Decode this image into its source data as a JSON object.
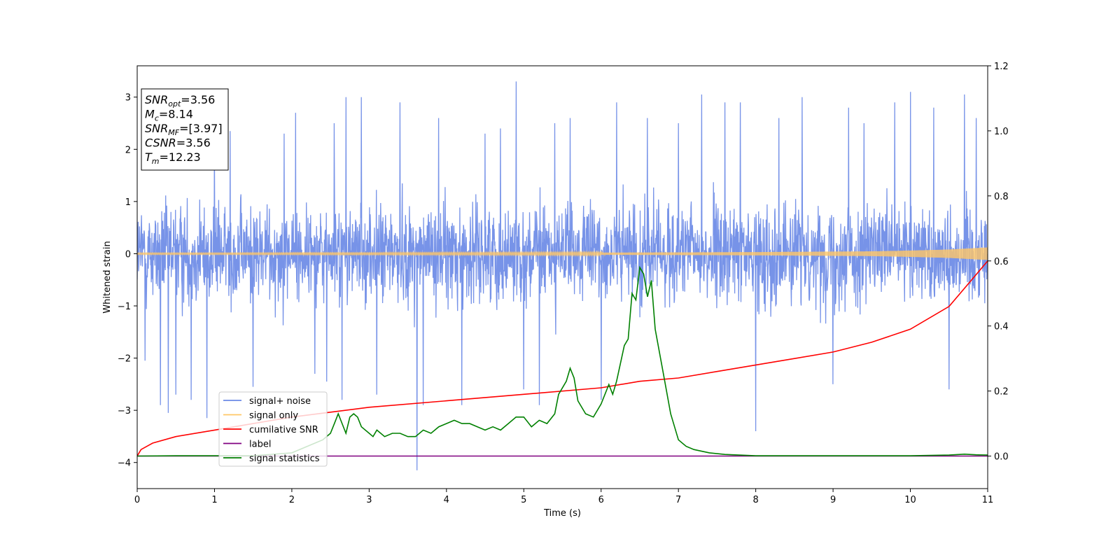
{
  "chart_data": {
    "type": "line",
    "xlabel": "Time (s)",
    "ylabel": "Whitened strain",
    "xlim": [
      0,
      11
    ],
    "ylim": [
      -4.5,
      3.6
    ],
    "ylim_right": [
      -0.1,
      1.2
    ],
    "xticks": [
      "0",
      "1",
      "2",
      "3",
      "4",
      "5",
      "6",
      "7",
      "8",
      "9",
      "10",
      "11"
    ],
    "xtick_values": [
      0,
      1,
      2,
      3,
      4,
      5,
      6,
      7,
      8,
      9,
      10,
      11
    ],
    "yticks": [
      "−4",
      "−3",
      "−2",
      "−1",
      "0",
      "1",
      "2",
      "3"
    ],
    "ytick_values": [
      -4,
      -3,
      -2,
      -1,
      0,
      1,
      2,
      3
    ],
    "yticks_right": [
      "0.0",
      "0.2",
      "0.4",
      "0.6",
      "0.8",
      "1.0",
      "1.2"
    ],
    "ytick_right_values": [
      0,
      0.2,
      0.4,
      0.6,
      0.8,
      1.0,
      1.2
    ],
    "legend_position": "lower-left",
    "legend": [
      {
        "name": "signal+ noise",
        "color": "#6b8ae6"
      },
      {
        "name": "signal only",
        "color": "#ffc766"
      },
      {
        "name": "cumilative SNR",
        "color": "#ff0000"
      },
      {
        "name": "label",
        "color": "#800080"
      },
      {
        "name": "signal statistics",
        "color": "#008000"
      }
    ],
    "annotation": {
      "snr_opt": {
        "name": "SNR",
        "sub": "opt",
        "value": "=3.56"
      },
      "mc": {
        "name": "M",
        "sub": "c",
        "value": "=8.14"
      },
      "snr_mf": {
        "name": "SNR",
        "sub": "MF",
        "value": "=[3.97]"
      },
      "csnr": {
        "name": "CSNR",
        "value": "=3.56"
      },
      "tm": {
        "name": "T",
        "sub": "m",
        "value": "=12.23"
      }
    },
    "series": [
      {
        "name": "signal+ noise",
        "axis": "left",
        "color": "#6b8ae6",
        "description": "noise band approx ±2 with spikes",
        "spikes": [
          [
            0.1,
            -2.05
          ],
          [
            0.3,
            -2.9
          ],
          [
            0.4,
            -3.05
          ],
          [
            0.5,
            -2.7
          ],
          [
            0.7,
            -2.8
          ],
          [
            0.9,
            -3.15
          ],
          [
            1.0,
            2.2
          ],
          [
            1.2,
            2.35
          ],
          [
            1.5,
            -2.55
          ],
          [
            1.9,
            2.3
          ],
          [
            2.05,
            2.7
          ],
          [
            2.3,
            -2.3
          ],
          [
            2.45,
            -2.45
          ],
          [
            2.55,
            2.5
          ],
          [
            2.65,
            -2.8
          ],
          [
            2.7,
            3.0
          ],
          [
            2.9,
            3.0
          ],
          [
            3.1,
            -2.7
          ],
          [
            3.4,
            2.9
          ],
          [
            3.62,
            -4.15
          ],
          [
            3.7,
            -2.9
          ],
          [
            3.9,
            2.6
          ],
          [
            4.2,
            -2.9
          ],
          [
            4.5,
            2.3
          ],
          [
            4.7,
            2.4
          ],
          [
            4.9,
            3.3
          ],
          [
            5.0,
            -2.6
          ],
          [
            5.2,
            -2.9
          ],
          [
            5.4,
            2.5
          ],
          [
            5.6,
            2.6
          ],
          [
            6.0,
            -2.8
          ],
          [
            6.2,
            2.9
          ],
          [
            6.6,
            2.6
          ],
          [
            7.0,
            2.5
          ],
          [
            7.3,
            3.05
          ],
          [
            7.6,
            2.9
          ],
          [
            7.8,
            2.9
          ],
          [
            8.0,
            -3.4
          ],
          [
            8.3,
            2.6
          ],
          [
            8.6,
            3.0
          ],
          [
            9.0,
            -2.5
          ],
          [
            9.2,
            2.8
          ],
          [
            9.4,
            2.5
          ],
          [
            9.8,
            2.9
          ],
          [
            10.0,
            3.1
          ],
          [
            10.3,
            2.8
          ],
          [
            10.5,
            -2.6
          ],
          [
            10.7,
            3.05
          ],
          [
            10.85,
            2.6
          ]
        ]
      },
      {
        "name": "signal only",
        "axis": "left",
        "color": "#ffc766",
        "x": [
          0,
          1,
          2,
          3,
          4,
          5,
          6,
          7,
          8,
          9,
          9.5,
          10,
          10.5,
          11
        ],
        "amplitude": [
          0.01,
          0.01,
          0.012,
          0.013,
          0.015,
          0.017,
          0.02,
          0.024,
          0.03,
          0.04,
          0.045,
          0.06,
          0.08,
          0.12
        ]
      },
      {
        "name": "cumilative SNR",
        "axis": "right",
        "color": "#ff0000",
        "x": [
          0,
          0.05,
          0.2,
          0.5,
          1,
          1.5,
          2,
          3,
          4,
          5,
          6,
          6.5,
          7,
          7.5,
          8,
          8.5,
          9,
          9.5,
          10,
          10.5,
          11
        ],
        "y": [
          0,
          0.02,
          0.04,
          0.06,
          0.08,
          0.1,
          0.12,
          0.15,
          0.17,
          0.19,
          0.21,
          0.23,
          0.24,
          0.26,
          0.28,
          0.3,
          0.32,
          0.35,
          0.39,
          0.46,
          0.6
        ]
      },
      {
        "name": "label",
        "axis": "right",
        "color": "#800080",
        "x": [
          0,
          11
        ],
        "y": [
          0,
          0
        ]
      },
      {
        "name": "signal statistics",
        "axis": "right",
        "color": "#008000",
        "x": [
          0,
          0.5,
          1,
          1.5,
          2,
          2.2,
          2.3,
          2.4,
          2.5,
          2.55,
          2.6,
          2.7,
          2.75,
          2.8,
          2.85,
          2.9,
          3.0,
          3.05,
          3.1,
          3.2,
          3.3,
          3.4,
          3.5,
          3.6,
          3.7,
          3.8,
          3.9,
          4.0,
          4.1,
          4.2,
          4.3,
          4.4,
          4.5,
          4.6,
          4.7,
          4.8,
          4.9,
          5.0,
          5.1,
          5.2,
          5.3,
          5.4,
          5.45,
          5.55,
          5.6,
          5.65,
          5.7,
          5.8,
          5.9,
          6.0,
          6.1,
          6.15,
          6.2,
          6.3,
          6.35,
          6.4,
          6.45,
          6.5,
          6.55,
          6.6,
          6.65,
          6.7,
          6.8,
          6.9,
          7.0,
          7.1,
          7.2,
          7.4,
          7.6,
          8.0,
          9.0,
          10.0,
          10.5,
          10.7,
          10.85,
          11.0
        ],
        "y": [
          0,
          0.001,
          0.001,
          0.001,
          0.01,
          0.03,
          0.04,
          0.05,
          0.07,
          0.1,
          0.13,
          0.07,
          0.12,
          0.13,
          0.12,
          0.09,
          0.07,
          0.06,
          0.08,
          0.06,
          0.07,
          0.07,
          0.06,
          0.06,
          0.08,
          0.07,
          0.09,
          0.1,
          0.11,
          0.1,
          0.1,
          0.09,
          0.08,
          0.09,
          0.08,
          0.1,
          0.12,
          0.12,
          0.09,
          0.11,
          0.1,
          0.13,
          0.19,
          0.23,
          0.27,
          0.24,
          0.17,
          0.13,
          0.12,
          0.16,
          0.22,
          0.19,
          0.23,
          0.34,
          0.36,
          0.5,
          0.48,
          0.58,
          0.56,
          0.49,
          0.54,
          0.39,
          0.26,
          0.13,
          0.05,
          0.03,
          0.02,
          0.01,
          0.005,
          0.001,
          0.001,
          0.001,
          0.003,
          0.006,
          0.004,
          0.003
        ]
      }
    ]
  }
}
